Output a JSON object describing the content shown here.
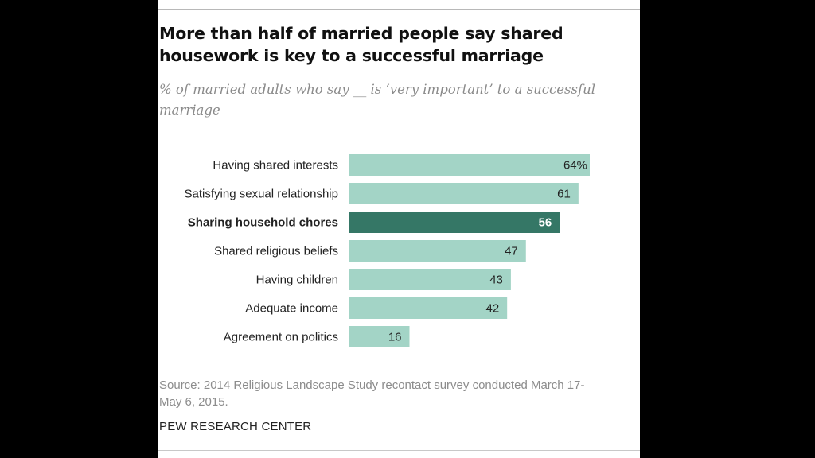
{
  "chart_data": {
    "type": "bar",
    "orientation": "horizontal",
    "title": "More than half of married people say shared housework is key to a successful marriage",
    "subtitle": "% of married adults who say __ is ‘very important’ to a successful marriage",
    "categories": [
      "Having shared interests",
      "Satisfying sexual relationship",
      "Sharing household chores",
      "Shared religious beliefs",
      "Having children",
      "Adequate income",
      "Agreement on politics"
    ],
    "values": [
      64,
      61,
      56,
      47,
      43,
      42,
      16
    ],
    "value_labels": [
      "64%",
      "61",
      "56",
      "47",
      "43",
      "42",
      "16"
    ],
    "highlight_index": 2,
    "xlim": [
      0,
      64
    ],
    "xlabel": "",
    "ylabel": "",
    "grid": false,
    "colors": {
      "bar": "#a3d4c6",
      "highlight": "#357766",
      "label_text": "#222222",
      "highlight_text": "#ffffff"
    }
  },
  "source": "Source: 2014 Religious Landscape Study recontact survey conducted March 17-May 6, 2015.",
  "organization": "PEW RESEARCH CENTER"
}
